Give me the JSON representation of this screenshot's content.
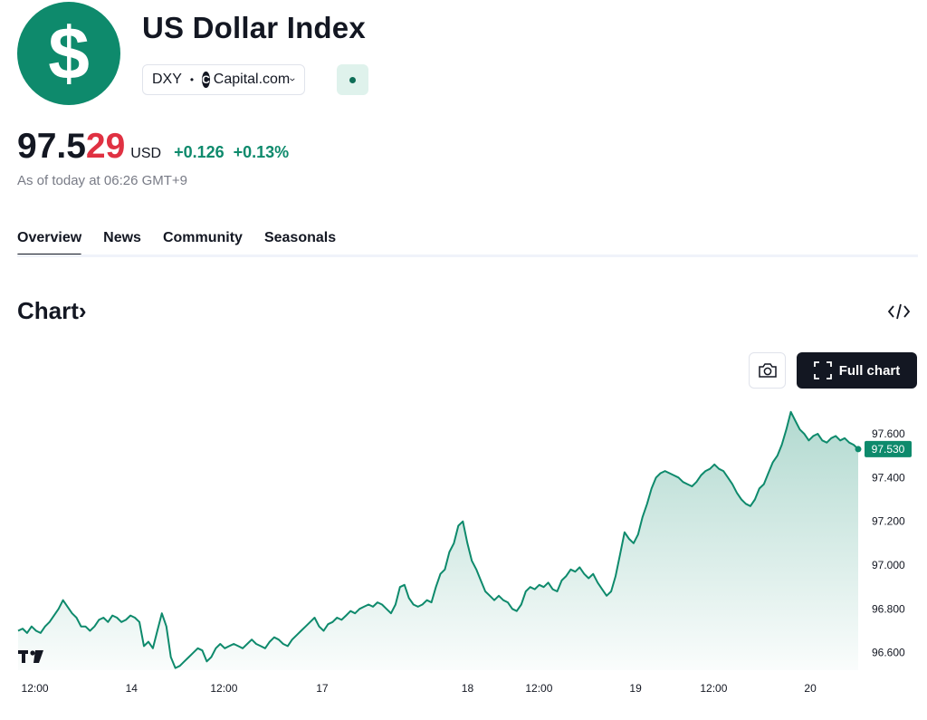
{
  "header": {
    "logo_icon": "dollar-sign-icon",
    "title": "US Dollar Index",
    "symbol": "DXY",
    "separator": "•",
    "source": "Capital.com",
    "source_logo_letter": "C"
  },
  "quote": {
    "price_main": "97.5",
    "price_tail": "29",
    "currency": "USD",
    "change": "+0.126",
    "change_pct": "+0.13%",
    "as_of": "As of today at 06:26 GMT+9"
  },
  "colors": {
    "accent": "#0e8a6c",
    "negative": "#e03142",
    "text": "#131722",
    "muted": "#787b86"
  },
  "tabs": [
    {
      "label": "Overview",
      "active": true
    },
    {
      "label": "News",
      "active": false
    },
    {
      "label": "Community",
      "active": false
    },
    {
      "label": "Seasonals",
      "active": false
    }
  ],
  "chart_section": {
    "title": "Chart",
    "title_arrow": "›",
    "embed_icon": "code-embed-icon",
    "screenshot_icon": "camera-icon",
    "full_chart_label": "Full chart"
  },
  "chart_data": {
    "type": "area",
    "title": "",
    "xlabel": "",
    "ylabel": "",
    "ylim": [
      96.52,
      97.72
    ],
    "y_ticks": [
      "97.600",
      "97.400",
      "97.200",
      "97.000",
      "96.800",
      "96.600"
    ],
    "y_tick_values": [
      97.6,
      97.4,
      97.2,
      97.0,
      96.8,
      96.6
    ],
    "x_ticks": [
      {
        "label": "12:00",
        "pos": 0.02
      },
      {
        "label": "14",
        "pos": 0.135
      },
      {
        "label": "12:00",
        "pos": 0.245
      },
      {
        "label": "17",
        "pos": 0.362
      },
      {
        "label": "18",
        "pos": 0.535
      },
      {
        "label": "12:00",
        "pos": 0.62
      },
      {
        "label": "19",
        "pos": 0.735
      },
      {
        "label": "12:00",
        "pos": 0.828
      },
      {
        "label": "20",
        "pos": 0.943
      }
    ],
    "last_value_label": "97.530",
    "last_value": 97.53,
    "watermark": "TV",
    "series": [
      {
        "values": [
          96.7,
          96.71,
          96.69,
          96.72,
          96.7,
          96.69,
          96.72,
          96.74,
          96.77,
          96.8,
          96.84,
          96.81,
          96.78,
          96.76,
          96.72,
          96.72,
          96.7,
          96.72,
          96.75,
          96.76,
          96.74,
          96.77,
          96.76,
          96.74,
          96.75,
          96.77,
          96.76,
          96.74,
          96.63,
          96.65,
          96.62,
          96.7,
          96.78,
          96.72,
          96.58,
          96.53,
          96.54,
          96.56,
          96.58,
          96.6,
          96.62,
          96.61,
          96.56,
          96.58,
          96.62,
          96.64,
          96.62,
          96.63,
          96.64,
          96.63,
          96.62,
          96.64,
          96.66,
          96.64,
          96.63,
          96.62,
          96.65,
          96.67,
          96.66,
          96.64,
          96.63,
          96.66,
          96.68,
          96.7,
          96.72,
          96.74,
          96.76,
          96.72,
          96.7,
          96.73,
          96.74,
          96.76,
          96.75,
          96.77,
          96.79,
          96.78,
          96.8,
          96.81,
          96.82,
          96.81,
          96.83,
          96.82,
          96.8,
          96.78,
          96.82,
          96.9,
          96.91,
          96.85,
          96.82,
          96.81,
          96.82,
          96.84,
          96.83,
          96.9,
          96.96,
          96.98,
          97.06,
          97.1,
          97.18,
          97.2,
          97.1,
          97.02,
          96.98,
          96.93,
          96.88,
          96.86,
          96.84,
          96.86,
          96.84,
          96.83,
          96.8,
          96.79,
          96.82,
          96.88,
          96.9,
          96.89,
          96.91,
          96.9,
          96.92,
          96.89,
          96.88,
          96.93,
          96.95,
          96.98,
          96.97,
          96.99,
          96.96,
          96.94,
          96.96,
          96.92,
          96.89,
          96.86,
          96.88,
          96.95,
          97.05,
          97.15,
          97.12,
          97.1,
          97.14,
          97.22,
          97.28,
          97.35,
          97.4,
          97.42,
          97.43,
          97.42,
          97.41,
          97.4,
          97.38,
          97.37,
          97.36,
          97.38,
          97.41,
          97.43,
          97.44,
          97.46,
          97.44,
          97.43,
          97.4,
          97.37,
          97.33,
          97.3,
          97.28,
          97.27,
          97.3,
          97.35,
          97.37,
          97.42,
          97.47,
          97.5,
          97.55,
          97.62,
          97.7,
          97.66,
          97.62,
          97.6,
          97.57,
          97.59,
          97.6,
          97.57,
          97.56,
          97.58,
          97.59,
          97.57,
          97.58,
          97.56,
          97.55,
          97.53
        ]
      }
    ]
  }
}
